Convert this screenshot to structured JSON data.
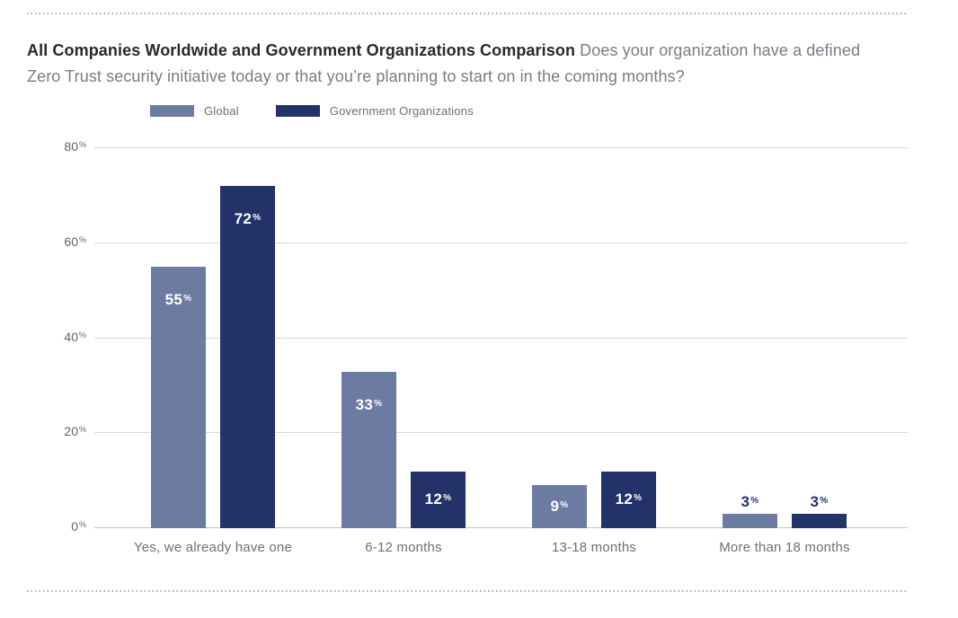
{
  "header": {
    "title_bold": "All Companies Worldwide and Government Organizations Comparison",
    "title_rest": "Does your organization have a defined Zero Trust security initiative today or that you’re planning to start on in the coming months?"
  },
  "chart_data": {
    "type": "bar",
    "title": "All Companies Worldwide and Government Organizations Comparison",
    "subtitle_question": "Does your organization have a defined Zero Trust security initiative today or that you’re planning to start on in the coming months?",
    "categories": [
      "Yes, we already have one",
      "6-12 months",
      "13-18 months",
      "More than 18 months"
    ],
    "series": [
      {
        "name": "Global",
        "key": "global",
        "color": "#6C7BA1",
        "values": [
          55,
          33,
          9,
          3
        ]
      },
      {
        "name": "Government Organizations",
        "key": "government-organizations",
        "color": "#233369",
        "values": [
          72,
          12,
          12,
          3
        ]
      }
    ],
    "unit": "%",
    "y_ticks": [
      0,
      20,
      40,
      60,
      80
    ],
    "ylim": [
      0,
      80
    ],
    "grid": true,
    "legend_position": "top-left",
    "value_labels": "on-bars"
  },
  "colors": {
    "page_bg": "#ffffff",
    "global_bar": "#6C7BA1",
    "government_bar": "#233369",
    "gridline": "#d7d8dc",
    "baseline": "#c4c6cb",
    "axis_label": "#5d6372",
    "category_label": "#6b6f7b",
    "legend_label": "#6a6e79",
    "title": "#26292f",
    "subtitle": "#787c85",
    "value_label_light": "#ffffff",
    "value_label_dark": "#233369",
    "rule_dot": "#a9abb0"
  }
}
